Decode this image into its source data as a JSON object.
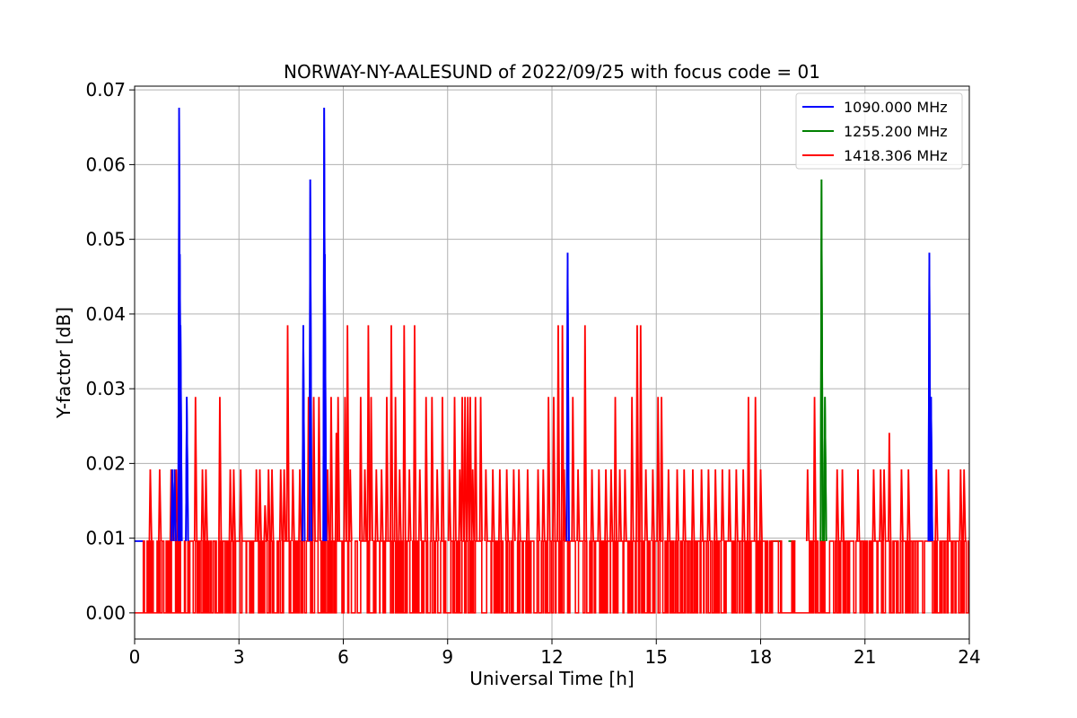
{
  "chart_data": {
    "type": "line",
    "title": "NORWAY-NY-AALESUND of 2022/09/25 with focus code = 01",
    "xlabel": "Universal Time [h]",
    "ylabel": "Y-factor [dB]",
    "xlim": [
      0,
      24
    ],
    "ylim": [
      -0.0035,
      0.0705
    ],
    "xticks": [
      0,
      3,
      6,
      9,
      12,
      15,
      18,
      21,
      24
    ],
    "xtick_labels": [
      "0",
      "3",
      "6",
      "9",
      "12",
      "15",
      "18",
      "21",
      "24"
    ],
    "yticks": [
      0.0,
      0.01,
      0.02,
      0.03,
      0.04,
      0.05,
      0.06,
      0.07
    ],
    "ytick_labels": [
      "0.00",
      "0.01",
      "0.02",
      "0.03",
      "0.04",
      "0.05",
      "0.06",
      "0.07"
    ],
    "grid": true,
    "legend_position": "top-right",
    "series": [
      {
        "name": "1090.000 MHz",
        "color": "#0000ff",
        "baseline": 0.0096,
        "spikes": [
          [
            1.08,
            0.0192
          ],
          [
            1.15,
            0.0192
          ],
          [
            1.28,
            0.0676
          ],
          [
            1.3,
            0.048
          ],
          [
            1.32,
            0.0385
          ],
          [
            1.5,
            0.0289
          ],
          [
            4.85,
            0.0385
          ],
          [
            5.05,
            0.058
          ],
          [
            5.45,
            0.0676
          ],
          [
            5.47,
            0.048
          ],
          [
            12.45,
            0.0482
          ],
          [
            22.85,
            0.0482
          ],
          [
            22.9,
            0.0289
          ]
        ]
      },
      {
        "name": "1255.200 MHz",
        "color": "#008000",
        "baseline": 0.0096,
        "spikes": [
          [
            19.75,
            0.058
          ],
          [
            19.85,
            0.0289
          ]
        ]
      },
      {
        "name": "1418.306 MHz",
        "color": "#ff0000",
        "baseline": 0.0,
        "spikes": [
          [
            0.45,
            0.0192
          ],
          [
            0.72,
            0.0192
          ],
          [
            1.05,
            0.0192
          ],
          [
            1.2,
            0.0192
          ],
          [
            1.75,
            0.0289
          ],
          [
            1.95,
            0.0192
          ],
          [
            2.05,
            0.0192
          ],
          [
            2.45,
            0.0289
          ],
          [
            2.75,
            0.0192
          ],
          [
            2.85,
            0.0192
          ],
          [
            3.05,
            0.0192
          ],
          [
            3.5,
            0.0192
          ],
          [
            3.6,
            0.0192
          ],
          [
            3.75,
            0.0144
          ],
          [
            3.85,
            0.0192
          ],
          [
            3.95,
            0.0192
          ],
          [
            4.2,
            0.0192
          ],
          [
            4.3,
            0.0192
          ],
          [
            4.4,
            0.0385
          ],
          [
            4.55,
            0.0192
          ],
          [
            4.75,
            0.0192
          ],
          [
            5.0,
            0.0289
          ],
          [
            5.15,
            0.0289
          ],
          [
            5.3,
            0.0289
          ],
          [
            5.55,
            0.0192
          ],
          [
            5.65,
            0.0289
          ],
          [
            5.8,
            0.0241
          ],
          [
            5.85,
            0.0289
          ],
          [
            6.05,
            0.0289
          ],
          [
            6.12,
            0.0385
          ],
          [
            6.2,
            0.0192
          ],
          [
            6.5,
            0.0289
          ],
          [
            6.62,
            0.0192
          ],
          [
            6.72,
            0.0385
          ],
          [
            6.8,
            0.0289
          ],
          [
            6.95,
            0.0192
          ],
          [
            7.1,
            0.0192
          ],
          [
            7.25,
            0.0289
          ],
          [
            7.38,
            0.0385
          ],
          [
            7.5,
            0.0289
          ],
          [
            7.62,
            0.0192
          ],
          [
            7.75,
            0.0385
          ],
          [
            7.9,
            0.0192
          ],
          [
            8.05,
            0.0385
          ],
          [
            8.2,
            0.0192
          ],
          [
            8.38,
            0.0289
          ],
          [
            8.55,
            0.0289
          ],
          [
            8.7,
            0.0192
          ],
          [
            8.85,
            0.0289
          ],
          [
            9.05,
            0.0192
          ],
          [
            9.2,
            0.0289
          ],
          [
            9.35,
            0.0192
          ],
          [
            9.42,
            0.0289
          ],
          [
            9.5,
            0.0289
          ],
          [
            9.58,
            0.0289
          ],
          [
            9.65,
            0.0289
          ],
          [
            9.72,
            0.0192
          ],
          [
            9.8,
            0.0289
          ],
          [
            9.95,
            0.0289
          ],
          [
            10.1,
            0.0192
          ],
          [
            10.3,
            0.0192
          ],
          [
            10.5,
            0.0192
          ],
          [
            10.7,
            0.0192
          ],
          [
            10.9,
            0.0192
          ],
          [
            11.05,
            0.0192
          ],
          [
            11.3,
            0.0192
          ],
          [
            11.6,
            0.0192
          ],
          [
            11.75,
            0.0192
          ],
          [
            11.9,
            0.0289
          ],
          [
            12.05,
            0.0289
          ],
          [
            12.18,
            0.0385
          ],
          [
            12.3,
            0.0385
          ],
          [
            12.35,
            0.0192
          ],
          [
            12.6,
            0.0289
          ],
          [
            12.75,
            0.0192
          ],
          [
            12.95,
            0.0385
          ],
          [
            13.15,
            0.0192
          ],
          [
            13.35,
            0.0192
          ],
          [
            13.55,
            0.0192
          ],
          [
            13.7,
            0.0192
          ],
          [
            13.82,
            0.0289
          ],
          [
            13.95,
            0.0192
          ],
          [
            14.1,
            0.0192
          ],
          [
            14.3,
            0.0289
          ],
          [
            14.45,
            0.0385
          ],
          [
            14.55,
            0.0385
          ],
          [
            14.7,
            0.0192
          ],
          [
            14.9,
            0.0192
          ],
          [
            15.05,
            0.0289
          ],
          [
            15.15,
            0.0289
          ],
          [
            15.35,
            0.0192
          ],
          [
            15.6,
            0.0192
          ],
          [
            15.8,
            0.0192
          ],
          [
            16.05,
            0.0192
          ],
          [
            16.3,
            0.0192
          ],
          [
            16.5,
            0.0192
          ],
          [
            16.7,
            0.0192
          ],
          [
            16.9,
            0.0192
          ],
          [
            17.1,
            0.0192
          ],
          [
            17.3,
            0.0192
          ],
          [
            17.5,
            0.0192
          ],
          [
            17.65,
            0.0289
          ],
          [
            17.85,
            0.0289
          ],
          [
            18.0,
            0.0192
          ],
          [
            19.35,
            0.0192
          ],
          [
            19.55,
            0.0289
          ],
          [
            20.2,
            0.0192
          ],
          [
            20.35,
            0.0192
          ],
          [
            20.8,
            0.0192
          ],
          [
            21.25,
            0.0192
          ],
          [
            21.45,
            0.0192
          ],
          [
            21.55,
            0.0192
          ],
          [
            21.7,
            0.0241
          ],
          [
            22.05,
            0.0192
          ],
          [
            22.25,
            0.0192
          ],
          [
            23.05,
            0.0192
          ],
          [
            23.4,
            0.0192
          ],
          [
            23.75,
            0.0192
          ],
          [
            23.85,
            0.0192
          ]
        ],
        "gaps": [
          [
            18.6,
            18.8
          ],
          [
            19.0,
            19.3
          ]
        ]
      }
    ]
  }
}
